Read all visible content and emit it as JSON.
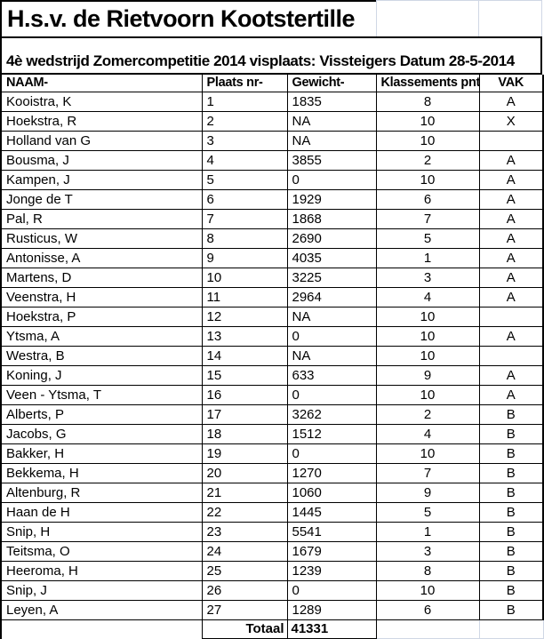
{
  "title": "H.s.v. de Rietvoorn Kootstertille",
  "subtitle": "4è wedstrijd Zomercompetitie 2014 visplaats: Vissteigers Datum 28-5-2014",
  "colors": {
    "text": "#000000",
    "grid_dark": "#000000",
    "grid_light": "#d0d7e5",
    "background": "#ffffff"
  },
  "table": {
    "columns": [
      "NAAM-",
      "Plaats nr-",
      "Gewicht-",
      "Klassements pnt-",
      "VAK"
    ],
    "rows": [
      {
        "naam": "Kooistra, K",
        "plaats": "1",
        "gewicht": "1835",
        "pnt": "8",
        "vak": "A"
      },
      {
        "naam": "Hoekstra, R",
        "plaats": "2",
        "gewicht": "NA",
        "pnt": "10",
        "vak": "X"
      },
      {
        "naam": "Holland van G",
        "plaats": "3",
        "gewicht": "NA",
        "pnt": "10",
        "vak": ""
      },
      {
        "naam": "Bousma, J",
        "plaats": "4",
        "gewicht": "3855",
        "pnt": "2",
        "vak": "A"
      },
      {
        "naam": "Kampen, J",
        "plaats": "5",
        "gewicht": "0",
        "pnt": "10",
        "vak": "A"
      },
      {
        "naam": "Jonge de T",
        "plaats": "6",
        "gewicht": "1929",
        "pnt": "6",
        "vak": "A"
      },
      {
        "naam": "Pal, R",
        "plaats": "7",
        "gewicht": "1868",
        "pnt": "7",
        "vak": "A"
      },
      {
        "naam": "Rusticus, W",
        "plaats": "8",
        "gewicht": "2690",
        "pnt": "5",
        "vak": "A"
      },
      {
        "naam": "Antonisse, A",
        "plaats": "9",
        "gewicht": "4035",
        "pnt": "1",
        "vak": "A"
      },
      {
        "naam": "Martens, D",
        "plaats": "10",
        "gewicht": "3225",
        "pnt": "3",
        "vak": "A"
      },
      {
        "naam": "Veenstra, H",
        "plaats": "11",
        "gewicht": "2964",
        "pnt": "4",
        "vak": "A"
      },
      {
        "naam": "Hoekstra, P",
        "plaats": "12",
        "gewicht": "NA",
        "pnt": "10",
        "vak": ""
      },
      {
        "naam": "Ytsma, A",
        "plaats": "13",
        "gewicht": "0",
        "pnt": "10",
        "vak": "A"
      },
      {
        "naam": "Westra, B",
        "plaats": "14",
        "gewicht": "NA",
        "pnt": "10",
        "vak": ""
      },
      {
        "naam": "Koning, J",
        "plaats": "15",
        "gewicht": "633",
        "pnt": "9",
        "vak": "A"
      },
      {
        "naam": "Veen - Ytsma, T",
        "plaats": "16",
        "gewicht": "0",
        "pnt": "10",
        "vak": "A"
      },
      {
        "naam": "Alberts, P",
        "plaats": "17",
        "gewicht": "3262",
        "pnt": "2",
        "vak": "B"
      },
      {
        "naam": "Jacobs, G",
        "plaats": "18",
        "gewicht": "1512",
        "pnt": "4",
        "vak": "B"
      },
      {
        "naam": "Bakker, H",
        "plaats": "19",
        "gewicht": "0",
        "pnt": "10",
        "vak": "B"
      },
      {
        "naam": "Bekkema, H",
        "plaats": "20",
        "gewicht": "1270",
        "pnt": "7",
        "vak": "B"
      },
      {
        "naam": "Altenburg, R",
        "plaats": "21",
        "gewicht": "1060",
        "pnt": "9",
        "vak": "B"
      },
      {
        "naam": "Haan de H",
        "plaats": "22",
        "gewicht": "1445",
        "pnt": "5",
        "vak": "B"
      },
      {
        "naam": "Snip, H",
        "plaats": "23",
        "gewicht": "5541",
        "pnt": "1",
        "vak": "B"
      },
      {
        "naam": "Teitsma, O",
        "plaats": "24",
        "gewicht": "1679",
        "pnt": "3",
        "vak": "B"
      },
      {
        "naam": "Heeroma, H",
        "plaats": "25",
        "gewicht": "1239",
        "pnt": "8",
        "vak": "B"
      },
      {
        "naam": "Snip, J",
        "plaats": "26",
        "gewicht": "0",
        "pnt": "10",
        "vak": "B"
      },
      {
        "naam": "Leyen, A",
        "plaats": "27",
        "gewicht": "1289",
        "pnt": "6",
        "vak": "B"
      }
    ],
    "footer": {
      "label": "Totaal",
      "total": "41331"
    }
  }
}
